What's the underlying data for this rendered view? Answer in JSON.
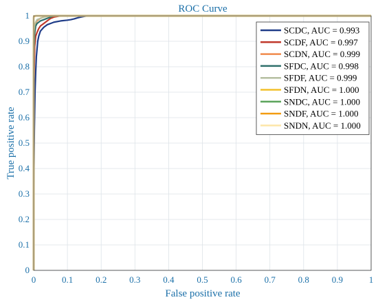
{
  "chart_data": {
    "type": "line",
    "title": "ROC Curve",
    "xlabel": "False positive rate",
    "ylabel": "True positive rate",
    "xlim": [
      0,
      1
    ],
    "ylim": [
      0,
      1
    ],
    "xticks": [
      "0",
      "0.1",
      "0.2",
      "0.3",
      "0.4",
      "0.5",
      "0.6",
      "0.7",
      "0.8",
      "0.9",
      "1"
    ],
    "yticks": [
      "0",
      "0.1",
      "0.2",
      "0.3",
      "0.4",
      "0.5",
      "0.6",
      "0.7",
      "0.8",
      "0.9",
      "1"
    ],
    "grid": true,
    "legend_position": "top-right",
    "series": [
      {
        "name": "SCDC, AUC = 0.993",
        "color": "#1f3c88",
        "x": [
          0,
          0,
          0.002,
          0.004,
          0.006,
          0.008,
          0.01,
          0.012,
          0.015,
          0.02,
          0.03,
          0.04,
          0.05,
          0.06,
          0.08,
          0.1,
          0.11,
          0.12,
          0.13,
          0.14,
          0.15,
          0.16,
          1
        ],
        "y": [
          0,
          0.3,
          0.55,
          0.7,
          0.78,
          0.84,
          0.87,
          0.9,
          0.92,
          0.94,
          0.955,
          0.965,
          0.97,
          0.975,
          0.98,
          0.983,
          0.985,
          0.988,
          0.992,
          0.995,
          0.998,
          1,
          1
        ]
      },
      {
        "name": "SCDF, AUC = 0.997",
        "color": "#c0392b",
        "x": [
          0,
          0,
          0.003,
          0.006,
          0.01,
          0.015,
          0.02,
          0.03,
          0.04,
          0.05,
          0.06,
          0.08,
          1
        ],
        "y": [
          0,
          0.7,
          0.88,
          0.92,
          0.935,
          0.95,
          0.96,
          0.97,
          0.98,
          0.99,
          0.995,
          1,
          1
        ]
      },
      {
        "name": "SCDN, AUC = 0.999",
        "color": "#f08a4b",
        "x": [
          0,
          0,
          0.003,
          0.006,
          0.01,
          0.02,
          0.03,
          0.04,
          0.05,
          1
        ],
        "y": [
          0,
          0.9,
          0.95,
          0.97,
          0.98,
          0.99,
          0.995,
          0.998,
          1,
          1
        ]
      },
      {
        "name": "SFDC, AUC = 0.998",
        "color": "#2e6f6b",
        "x": [
          0,
          0,
          0.003,
          0.006,
          0.01,
          0.02,
          0.03,
          0.04,
          0.05,
          0.06,
          1
        ],
        "y": [
          0,
          0.85,
          0.93,
          0.96,
          0.97,
          0.98,
          0.985,
          0.99,
          0.995,
          1,
          1
        ]
      },
      {
        "name": "SFDF, AUC = 0.999",
        "color": "#b5bfa0",
        "x": [
          0,
          0,
          0.003,
          0.006,
          0.01,
          0.02,
          0.03,
          0.04,
          0.05,
          1
        ],
        "y": [
          0,
          0.93,
          0.965,
          0.975,
          0.985,
          0.99,
          0.995,
          0.998,
          1,
          1
        ]
      },
      {
        "name": "SFDN, AUC = 1.000",
        "color": "#f2c02a",
        "x": [
          0,
          0,
          0.005,
          1
        ],
        "y": [
          0,
          0.995,
          1,
          1
        ]
      },
      {
        "name": "SNDC, AUC = 1.000",
        "color": "#5aa35a",
        "x": [
          0,
          0,
          0.005,
          1
        ],
        "y": [
          0,
          0.995,
          1,
          1
        ]
      },
      {
        "name": "SNDF, AUC = 1.000",
        "color": "#f39c12",
        "x": [
          0,
          0,
          0.005,
          1
        ],
        "y": [
          0,
          0.995,
          1,
          1
        ]
      },
      {
        "name": "SNDN, AUC = 1.000",
        "color": "#fde6a8",
        "x": [
          0,
          0,
          1
        ],
        "y": [
          0,
          1,
          1
        ]
      }
    ]
  }
}
